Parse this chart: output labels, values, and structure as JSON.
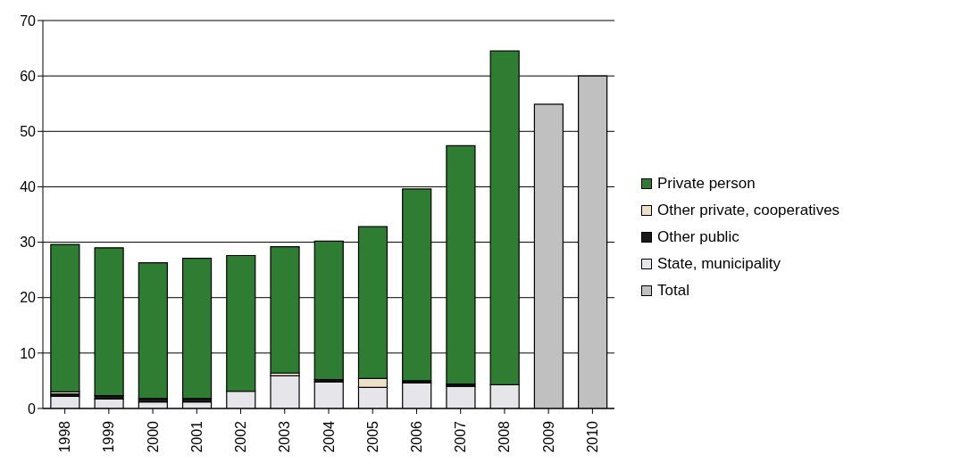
{
  "chart_data": {
    "type": "bar",
    "stacked": true,
    "categories": [
      "1998",
      "1999",
      "2000",
      "2001",
      "2002",
      "2003",
      "2004",
      "2005",
      "2006",
      "2007",
      "2008",
      "2009",
      "2010"
    ],
    "series": [
      {
        "name": "Total",
        "color": "#c0c0c0",
        "values": [
          null,
          null,
          null,
          null,
          null,
          null,
          null,
          null,
          null,
          null,
          null,
          54.9,
          60.0
        ]
      },
      {
        "name": "State, municipality",
        "color": "#e6e6ea",
        "values": [
          2.2,
          1.7,
          1.2,
          1.2,
          3.1,
          5.9,
          4.8,
          3.8,
          4.6,
          4.0,
          4.3,
          null,
          null
        ]
      },
      {
        "name": "Other public",
        "color": "#1a1a1a",
        "values": [
          0.4,
          0.6,
          0.6,
          0.6,
          null,
          null,
          0.4,
          null,
          0.4,
          0.4,
          null,
          null,
          null
        ]
      },
      {
        "name": "Other private, cooperatives",
        "color": "#ede0c4",
        "values": [
          0.4,
          null,
          null,
          null,
          null,
          0.5,
          null,
          1.6,
          null,
          null,
          null,
          null,
          null
        ]
      },
      {
        "name": "Private person",
        "color": "#2e7d32",
        "values": [
          26.6,
          26.7,
          24.5,
          25.3,
          24.5,
          22.8,
          25.0,
          27.4,
          34.6,
          43.0,
          60.2,
          null,
          null
        ]
      }
    ],
    "ylim": [
      0,
      70
    ],
    "yticks": [
      0,
      10,
      20,
      30,
      40,
      50,
      60,
      70
    ],
    "grid": "y",
    "legend": "right"
  }
}
